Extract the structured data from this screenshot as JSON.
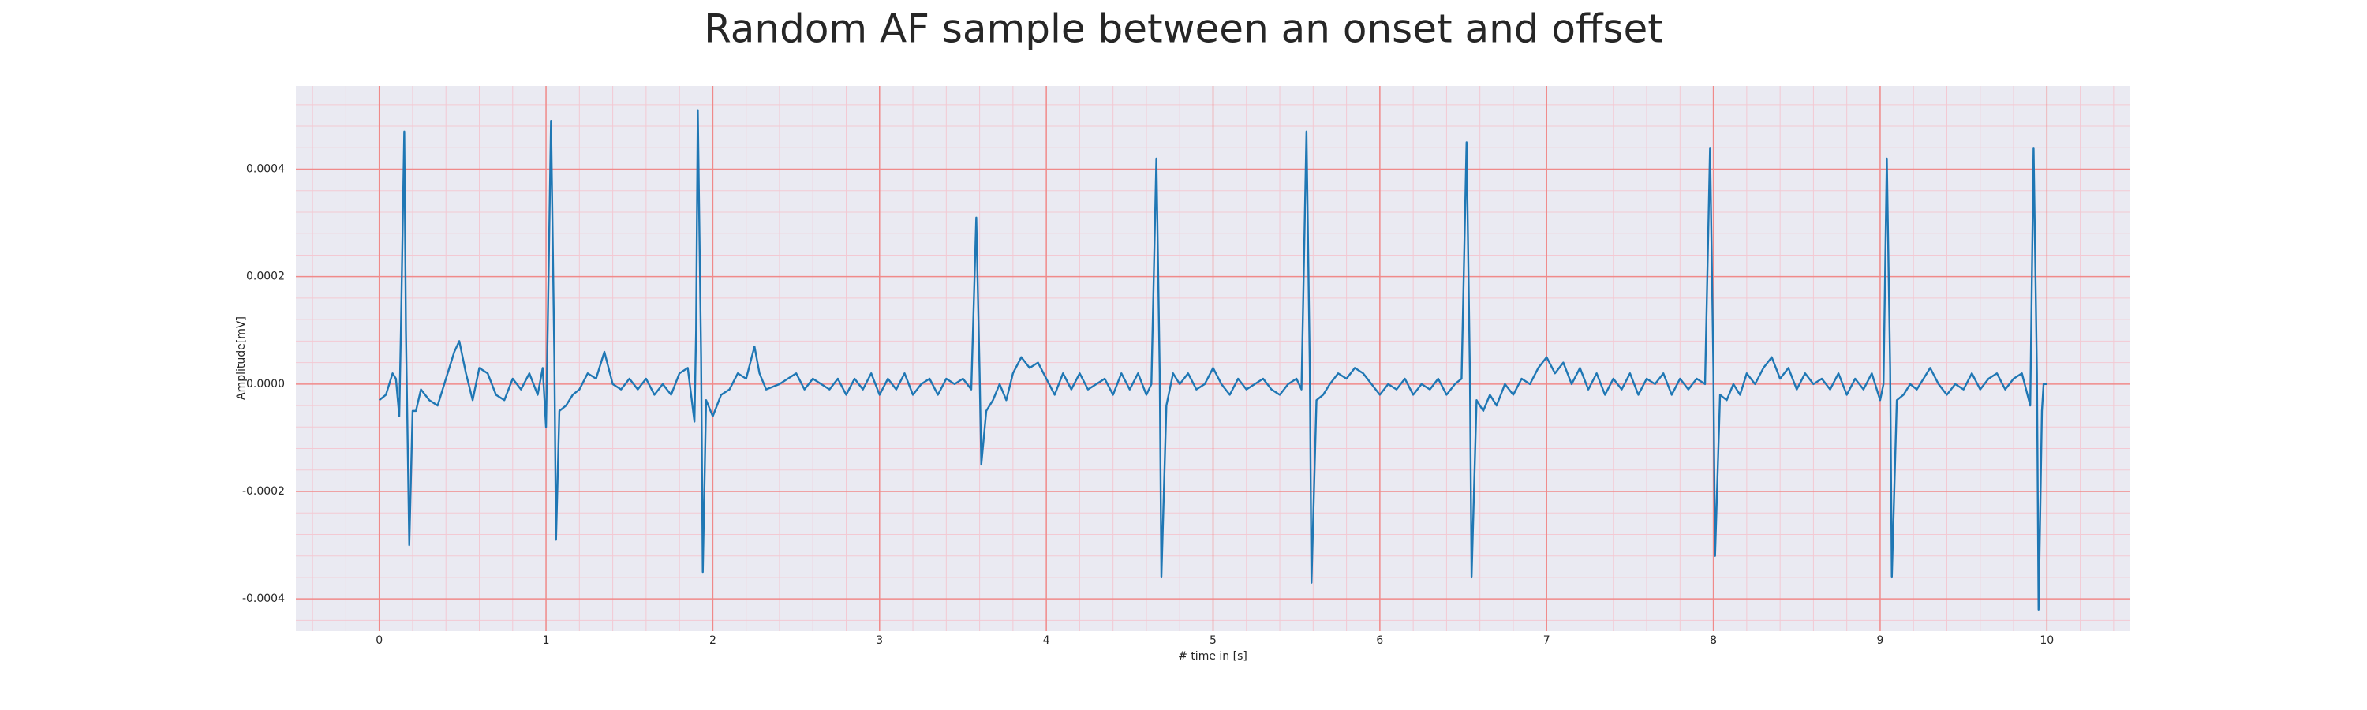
{
  "chart_data": {
    "type": "line",
    "title": "Random AF sample between an onset and offset",
    "xlabel": "# time in [s]",
    "ylabel": "Amplitude[mV]",
    "color": "#1f77b4",
    "x": [
      0,
      0.04,
      0.08,
      0.1,
      0.12,
      0.13,
      0.15,
      0.16,
      0.18,
      0.2,
      0.22,
      0.25,
      0.3,
      0.35,
      0.4,
      0.45,
      0.48,
      0.52,
      0.56,
      0.6,
      0.65,
      0.7,
      0.75,
      0.8,
      0.85,
      0.9,
      0.95,
      0.98,
      1.0,
      1.01,
      1.03,
      1.05,
      1.06,
      1.08,
      1.12,
      1.16,
      1.2,
      1.25,
      1.3,
      1.35,
      1.4,
      1.45,
      1.5,
      1.55,
      1.6,
      1.65,
      1.7,
      1.75,
      1.8,
      1.85,
      1.89,
      1.9,
      1.91,
      1.93,
      1.94,
      1.96,
      2.0,
      2.05,
      2.1,
      2.15,
      2.2,
      2.25,
      2.28,
      2.32,
      2.4,
      2.45,
      2.5,
      2.55,
      2.6,
      2.65,
      2.7,
      2.75,
      2.8,
      2.85,
      2.9,
      2.95,
      3.0,
      3.05,
      3.1,
      3.15,
      3.2,
      3.25,
      3.3,
      3.35,
      3.4,
      3.45,
      3.5,
      3.55,
      3.58,
      3.6,
      3.61,
      3.64,
      3.68,
      3.72,
      3.76,
      3.8,
      3.85,
      3.9,
      3.95,
      4.0,
      4.05,
      4.1,
      4.15,
      4.2,
      4.25,
      4.3,
      4.35,
      4.4,
      4.45,
      4.5,
      4.55,
      4.6,
      4.63,
      4.66,
      4.68,
      4.69,
      4.72,
      4.76,
      4.8,
      4.85,
      4.9,
      4.95,
      5.0,
      5.05,
      5.1,
      5.15,
      5.2,
      5.25,
      5.3,
      5.35,
      5.4,
      5.45,
      5.5,
      5.53,
      5.56,
      5.58,
      5.59,
      5.62,
      5.66,
      5.7,
      5.75,
      5.8,
      5.85,
      5.9,
      5.95,
      6.0,
      6.05,
      6.1,
      6.15,
      6.2,
      6.25,
      6.3,
      6.35,
      6.4,
      6.45,
      6.49,
      6.52,
      6.54,
      6.55,
      6.58,
      6.62,
      6.66,
      6.7,
      6.75,
      6.8,
      6.85,
      6.9,
      6.95,
      7.0,
      7.05,
      7.1,
      7.15,
      7.2,
      7.25,
      7.3,
      7.35,
      7.4,
      7.45,
      7.5,
      7.55,
      7.6,
      7.65,
      7.7,
      7.75,
      7.8,
      7.85,
      7.9,
      7.95,
      7.98,
      8.0,
      8.01,
      8.04,
      8.08,
      8.12,
      8.16,
      8.2,
      8.25,
      8.3,
      8.35,
      8.4,
      8.45,
      8.5,
      8.55,
      8.6,
      8.65,
      8.7,
      8.75,
      8.8,
      8.85,
      8.9,
      8.95,
      9.0,
      9.02,
      9.04,
      9.06,
      9.07,
      9.1,
      9.14,
      9.18,
      9.22,
      9.26,
      9.3,
      9.35,
      9.4,
      9.45,
      9.5,
      9.55,
      9.6,
      9.65,
      9.7,
      9.75,
      9.8,
      9.85,
      9.9,
      9.92,
      9.94,
      9.95,
      9.97,
      9.98,
      10.0
    ],
    "values": [
      -3e-05,
      -2e-05,
      2e-05,
      1e-05,
      -6e-05,
      0.0001,
      0.00047,
      0.0001,
      -0.0003,
      -5e-05,
      -5e-05,
      -1e-05,
      -3e-05,
      -4e-05,
      1e-05,
      6e-05,
      8e-05,
      2e-05,
      -3e-05,
      3e-05,
      2e-05,
      -2e-05,
      -3e-05,
      1e-05,
      -1e-05,
      2e-05,
      -2e-05,
      3e-05,
      -8e-05,
      0.0001,
      0.00049,
      5e-05,
      -0.00029,
      -5e-05,
      -4e-05,
      -2e-05,
      -1e-05,
      2e-05,
      1e-05,
      6e-05,
      0,
      -1e-05,
      1e-05,
      -1e-05,
      1e-05,
      -2e-05,
      0,
      -2e-05,
      2e-05,
      3e-05,
      -7e-05,
      0.0001,
      0.00051,
      5e-05,
      -0.00035,
      -3e-05,
      -6e-05,
      -2e-05,
      -1e-05,
      2e-05,
      1e-05,
      7e-05,
      2e-05,
      -1e-05,
      0,
      1e-05,
      2e-05,
      -1e-05,
      1e-05,
      0,
      -1e-05,
      1e-05,
      -2e-05,
      1e-05,
      -1e-05,
      2e-05,
      -2e-05,
      1e-05,
      -1e-05,
      2e-05,
      -2e-05,
      0,
      1e-05,
      -2e-05,
      1e-05,
      0,
      1e-05,
      -1e-05,
      0.00031,
      2e-05,
      -0.00015,
      -5e-05,
      -3e-05,
      0,
      -3e-05,
      2e-05,
      5e-05,
      3e-05,
      4e-05,
      1e-05,
      -2e-05,
      2e-05,
      -1e-05,
      2e-05,
      -1e-05,
      0,
      1e-05,
      -2e-05,
      2e-05,
      -1e-05,
      2e-05,
      -2e-05,
      0,
      0.00042,
      2e-05,
      -0.00036,
      -4e-05,
      2e-05,
      0,
      2e-05,
      -1e-05,
      0,
      3e-05,
      0,
      -2e-05,
      1e-05,
      -1e-05,
      0,
      1e-05,
      -1e-05,
      -2e-05,
      0,
      1e-05,
      -1e-05,
      0.00047,
      3e-05,
      -0.00037,
      -3e-05,
      -2e-05,
      0,
      2e-05,
      1e-05,
      3e-05,
      2e-05,
      0,
      -2e-05,
      0,
      -1e-05,
      1e-05,
      -2e-05,
      0,
      -1e-05,
      1e-05,
      -2e-05,
      0,
      1e-05,
      0.00045,
      2e-05,
      -0.00036,
      -3e-05,
      -5e-05,
      -2e-05,
      -4e-05,
      0,
      -2e-05,
      1e-05,
      0,
      3e-05,
      5e-05,
      2e-05,
      4e-05,
      0,
      3e-05,
      -1e-05,
      2e-05,
      -2e-05,
      1e-05,
      -1e-05,
      2e-05,
      -2e-05,
      1e-05,
      0,
      2e-05,
      -2e-05,
      1e-05,
      -1e-05,
      1e-05,
      0,
      0.00044,
      3e-05,
      -0.00032,
      -2e-05,
      -3e-05,
      0,
      -2e-05,
      2e-05,
      0,
      3e-05,
      5e-05,
      1e-05,
      3e-05,
      -1e-05,
      2e-05,
      0,
      1e-05,
      -1e-05,
      2e-05,
      -2e-05,
      1e-05,
      -1e-05,
      2e-05,
      -3e-05,
      0,
      0.00042,
      3e-05,
      -0.00036,
      -3e-05,
      -2e-05,
      0,
      -1e-05,
      1e-05,
      3e-05,
      0,
      -2e-05,
      0,
      -1e-05,
      2e-05,
      -1e-05,
      1e-05,
      2e-05,
      -1e-05,
      1e-05,
      2e-05,
      -4e-05,
      0.00044,
      2e-05,
      -0.00042,
      -5e-05,
      0,
      0
    ],
    "xlim": [
      -0.5,
      10.5
    ],
    "ylim": [
      -0.00046,
      0.000555
    ],
    "xticks": [
      0,
      1,
      2,
      3,
      4,
      5,
      6,
      7,
      8,
      9,
      10
    ],
    "yticks": [
      {
        "value": -0.0004,
        "label": "-0.0004"
      },
      {
        "value": -0.0002,
        "label": "-0.0002"
      },
      {
        "value": 0,
        "label": "0.0000"
      },
      {
        "value": 0.0002,
        "label": "0.0002"
      },
      {
        "value": 0.0004,
        "label": "0.0004"
      }
    ],
    "xminorticks": [
      -0.4,
      -0.2,
      0,
      0.2,
      0.4,
      0.6,
      0.8,
      1,
      1.2,
      1.4,
      1.6,
      1.8,
      2,
      2.2,
      2.4,
      2.6,
      2.8,
      3,
      3.2,
      3.4,
      3.6,
      3.8,
      4,
      4.2,
      4.4,
      4.6,
      4.8,
      5,
      5.2,
      5.4,
      5.6,
      5.8,
      6,
      6.2,
      6.4,
      6.6,
      6.8,
      7,
      7.2,
      7.4,
      7.6,
      7.8,
      8,
      8.2,
      8.4,
      8.6,
      8.8,
      9,
      9.2,
      9.4,
      9.6,
      9.8,
      10,
      10.2,
      10.4
    ],
    "yminorticks": [
      -0.00044,
      -0.0004,
      -0.00036,
      -0.00032,
      -0.00028,
      -0.00024,
      -0.0002,
      -0.00016,
      -0.00012,
      -8e-05,
      -4e-05,
      0,
      4e-05,
      8e-05,
      0.00012,
      0.00016,
      0.0002,
      0.00024,
      0.00028,
      0.00032,
      0.00036,
      0.0004,
      0.00044,
      0.00048,
      0.00052
    ],
    "grid": true,
    "grid_color": "#f08a8a",
    "minor_grid_color": "#f3c9d3"
  }
}
